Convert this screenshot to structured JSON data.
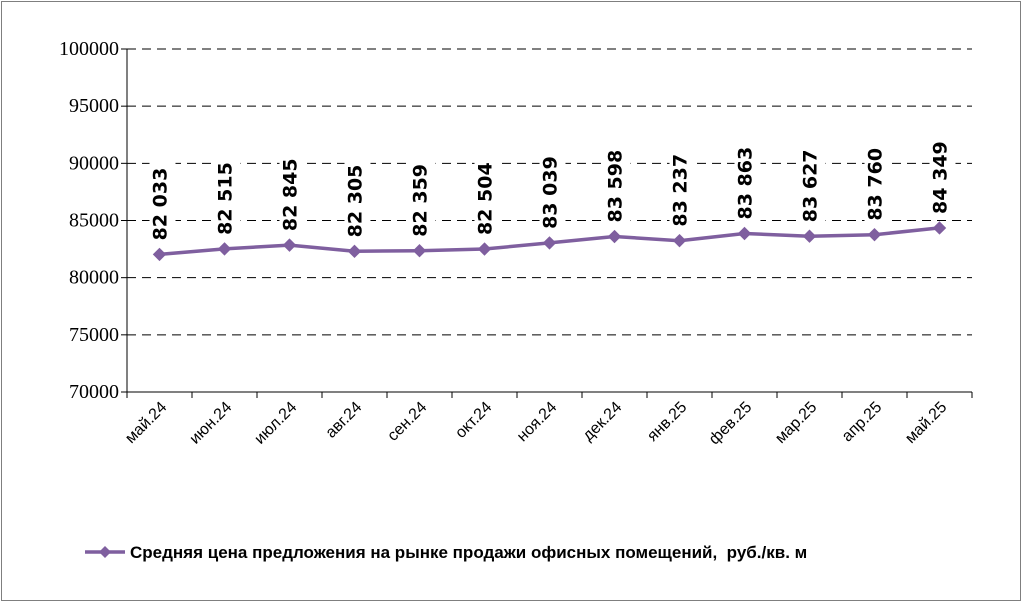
{
  "chart_data": {
    "type": "line",
    "categories": [
      "май.24",
      "июн.24",
      "июл.24",
      "авг.24",
      "сен.24",
      "окт.24",
      "ноя.24",
      "дек.24",
      "янв.25",
      "фев.25",
      "мар.25",
      "апр.25",
      "май.25"
    ],
    "series": [
      {
        "name": "Средняя цена предложения на рынке продажи офисных помещений,  руб./кв. м",
        "values": [
          82033,
          82515,
          82845,
          82305,
          82359,
          82504,
          83039,
          83598,
          83237,
          83863,
          83627,
          83760,
          84349
        ],
        "data_labels": [
          "82 033",
          "82 515",
          "82 845",
          "82 305",
          "82 359",
          "82 504",
          "83 039",
          "83 598",
          "83 237",
          "83 863",
          "83 627",
          "83 760",
          "84 349"
        ],
        "color": "#7f5f9f"
      }
    ],
    "y_ticks": [
      "70000",
      "75000",
      "80000",
      "85000",
      "90000",
      "95000",
      "100000"
    ],
    "ylim": [
      70000,
      100000
    ],
    "grid": "horizontal-dashed",
    "legend_position": "bottom",
    "title": "",
    "xlabel": "",
    "ylabel": ""
  }
}
